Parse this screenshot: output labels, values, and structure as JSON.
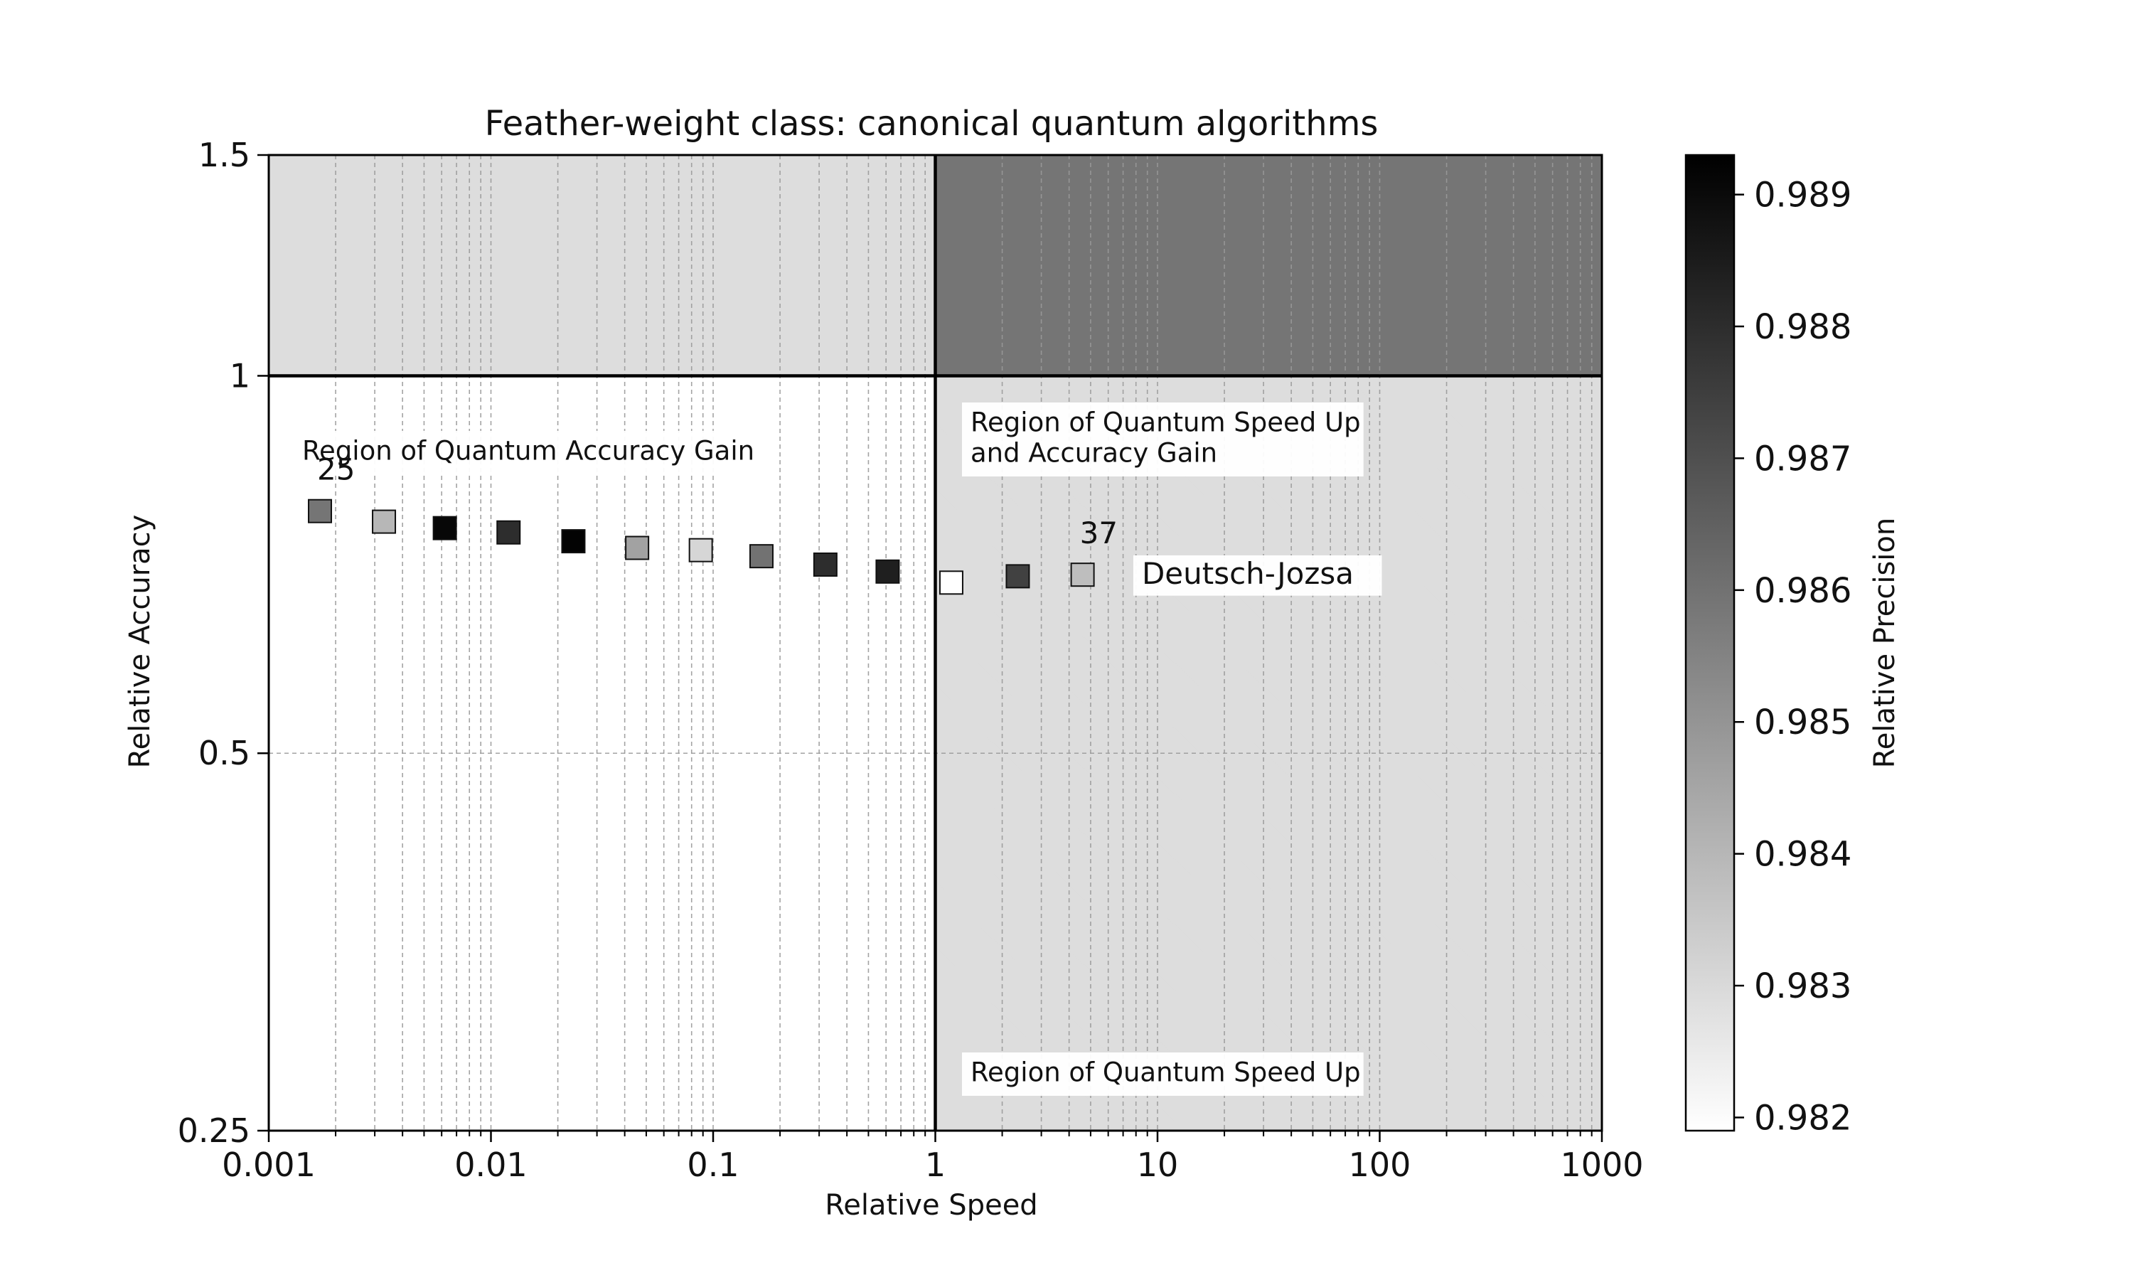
{
  "chart_data": {
    "type": "scatter",
    "title": "Feather-weight class: canonical quantum algorithms",
    "xlabel": "Relative Speed",
    "ylabel": "Relative Accuracy",
    "xscale": "log",
    "yscale": "log",
    "xlim": [
      0.001,
      1000
    ],
    "ylim": [
      0.25,
      1.5
    ],
    "x_ticks": [
      {
        "value": 0.001,
        "label": "0.001"
      },
      {
        "value": 0.01,
        "label": "0.01"
      },
      {
        "value": 0.1,
        "label": "0.1"
      },
      {
        "value": 1,
        "label": "1"
      },
      {
        "value": 10,
        "label": "10"
      },
      {
        "value": 100,
        "label": "100"
      },
      {
        "value": 1000,
        "label": "1000"
      }
    ],
    "y_ticks": [
      {
        "value": 0.25,
        "label": "0.25"
      },
      {
        "value": 0.5,
        "label": "0.5"
      },
      {
        "value": 1,
        "label": "1"
      },
      {
        "value": 1.5,
        "label": "1.5"
      }
    ],
    "grid": true,
    "reference_lines": {
      "x": 1,
      "y": 1
    },
    "regions": [
      {
        "name": "accuracy-gain",
        "label_lines": [
          "Region of Quantum Accuracy Gain"
        ],
        "x_range": [
          0.001,
          1
        ],
        "y_range": [
          1,
          1.5
        ],
        "shade": 0.9829
      },
      {
        "name": "speed-up-and-accuracy-gain",
        "label_lines": [
          "Region of Quantum Speed Up",
          "and Accuracy Gain"
        ],
        "x_range": [
          1,
          1000
        ],
        "y_range": [
          1,
          1.5
        ],
        "shade": 0.9859
      },
      {
        "name": "speed-up",
        "label_lines": [
          "Region of Quantum Speed Up"
        ],
        "x_range": [
          1,
          1000
        ],
        "y_range": [
          0.25,
          1
        ],
        "shade": 0.9829
      },
      {
        "name": "no-gain",
        "label_lines": [],
        "x_range": [
          0.001,
          1
        ],
        "y_range": [
          0.25,
          1
        ],
        "shade": null
      }
    ],
    "series": [
      {
        "name": "Deutsch-Jozsa",
        "points": [
          {
            "x": 0.0017,
            "y": 0.78,
            "c": 0.9859
          },
          {
            "x": 0.0033,
            "y": 0.765,
            "c": 0.984
          },
          {
            "x": 0.0062,
            "y": 0.756,
            "c": 0.9891
          },
          {
            "x": 0.012,
            "y": 0.75,
            "c": 0.988
          },
          {
            "x": 0.0235,
            "y": 0.738,
            "c": 0.9892
          },
          {
            "x": 0.0455,
            "y": 0.729,
            "c": 0.9846
          },
          {
            "x": 0.088,
            "y": 0.726,
            "c": 0.9831
          },
          {
            "x": 0.165,
            "y": 0.718,
            "c": 0.986
          },
          {
            "x": 0.32,
            "y": 0.707,
            "c": 0.988
          },
          {
            "x": 0.61,
            "y": 0.698,
            "c": 0.9884
          },
          {
            "x": 1.18,
            "y": 0.684,
            "c": 0.9819
          },
          {
            "x": 2.35,
            "y": 0.692,
            "c": 0.9874
          },
          {
            "x": 4.6,
            "y": 0.694,
            "c": 0.9838
          }
        ]
      }
    ],
    "annotations": [
      {
        "text": "25",
        "point_index": 0
      },
      {
        "text": "37",
        "point_index": 12
      },
      {
        "text": "Deutsch-Jozsa",
        "x": 8.5,
        "y": 0.697
      }
    ],
    "colorbar": {
      "label": "Relative Precision",
      "range": [
        0.9819,
        0.9893
      ],
      "colormap": "gray_r",
      "ticks": [
        {
          "value": 0.982,
          "label": "0.982"
        },
        {
          "value": 0.983,
          "label": "0.983"
        },
        {
          "value": 0.984,
          "label": "0.984"
        },
        {
          "value": 0.985,
          "label": "0.985"
        },
        {
          "value": 0.986,
          "label": "0.986"
        },
        {
          "value": 0.987,
          "label": "0.987"
        },
        {
          "value": 0.988,
          "label": "0.988"
        },
        {
          "value": 0.989,
          "label": "0.989"
        }
      ]
    }
  }
}
